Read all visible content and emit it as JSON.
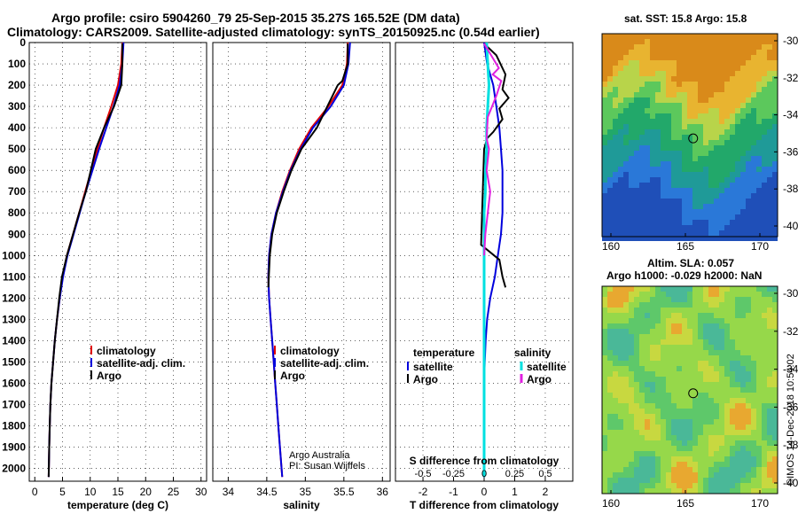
{
  "header": {
    "title_line1": "Argo profile: csiro 5904260_79 25-Sep-2015 35.27S 165.52E (DM data)",
    "title_line2": "Climatology: CARS2009. Satellite-adjusted climatology: synTS_20150925.nc (0.54d earlier)"
  },
  "maps": {
    "sst_title": "sat. SST: 15.8 Argo: 15.8",
    "sla_title1": "Altim. SLA: 0.057",
    "sla_title2": "Argo h1000: -0.029 h2000: NaN",
    "lat_ticks": [
      "-30",
      "-32",
      "-34",
      "-36",
      "-38",
      "-40"
    ],
    "lon_ticks": [
      "160",
      "165",
      "170"
    ],
    "float_position": {
      "lon": 165.52,
      "lat": -35.27
    }
  },
  "credits": {
    "line1": "Argo Australia",
    "line2": "PI: Susan Wijffels",
    "imos": "©IMOS 14-Dec-2018 10:54:02"
  },
  "colors": {
    "climatology": "#e00000",
    "satellite": "#0000dd",
    "argo": "#000000",
    "salinity_satellite": "#00e0e0",
    "salinity_argo": "#e020e0"
  },
  "chart_data": [
    {
      "type": "line",
      "xlabel": "temperature (deg C)",
      "ylabel": "",
      "xlim": [
        -1,
        31
      ],
      "ylim": [
        2060,
        0
      ],
      "xticks": [
        "0",
        "5",
        "10",
        "15",
        "20",
        "25",
        "30"
      ],
      "yticks": [
        "0",
        "100",
        "200",
        "300",
        "400",
        "500",
        "600",
        "700",
        "800",
        "900",
        "1000",
        "1100",
        "1200",
        "1300",
        "1400",
        "1500",
        "1600",
        "1700",
        "1800",
        "1900",
        "2000"
      ],
      "legend": [
        "climatology",
        "satellite-adj. clim.",
        "Argo"
      ],
      "series": [
        {
          "name": "climatology",
          "x": [
            15.8,
            15.6,
            15.0,
            13.8,
            12.5,
            11.3,
            10.2,
            9.1,
            8.0,
            6.9,
            5.8,
            5.0,
            4.5,
            4.0,
            3.6,
            3.3,
            3.0,
            2.8,
            2.7,
            2.6,
            2.5
          ],
          "y": [
            0,
            100,
            200,
            300,
            400,
            500,
            600,
            700,
            800,
            900,
            1000,
            1100,
            1200,
            1300,
            1400,
            1500,
            1600,
            1700,
            1800,
            1900,
            2040
          ]
        },
        {
          "name": "satellite-adj. clim.",
          "x": [
            16.0,
            15.8,
            15.3,
            14.2,
            12.9,
            11.6,
            10.4,
            9.2,
            8.1,
            7.0,
            5.9,
            5.1,
            4.5,
            4.0,
            3.6,
            3.3,
            3.0,
            2.8,
            2.7,
            2.6,
            2.5
          ],
          "y": [
            0,
            100,
            200,
            300,
            400,
            500,
            600,
            700,
            800,
            900,
            1000,
            1100,
            1200,
            1300,
            1400,
            1500,
            1600,
            1700,
            1800,
            1900,
            2040
          ]
        },
        {
          "name": "Argo",
          "x": [
            15.8,
            15.8,
            15.6,
            14.3,
            12.5,
            11.0,
            10.1,
            9.2,
            8.0,
            6.9,
            5.8,
            4.9,
            4.4,
            4.0,
            3.6,
            3.3,
            3.0,
            2.8,
            2.7,
            2.6,
            2.5
          ],
          "y": [
            5,
            100,
            200,
            300,
            400,
            500,
            600,
            700,
            800,
            900,
            1000,
            1100,
            1200,
            1300,
            1400,
            1500,
            1600,
            1700,
            1800,
            1900,
            2040
          ]
        }
      ]
    },
    {
      "type": "line",
      "xlabel": "salinity",
      "ylabel": "",
      "xlim": [
        33.8,
        36.1
      ],
      "ylim": [
        2060,
        0
      ],
      "xticks": [
        "34",
        "34.5",
        "35",
        "35.5",
        "36"
      ],
      "legend": [
        "climatology",
        "satellite-adj. clim.",
        "Argo"
      ],
      "series": [
        {
          "name": "climatology",
          "x": [
            35.55,
            35.54,
            35.48,
            35.3,
            35.08,
            34.92,
            34.8,
            34.7,
            34.62,
            34.56,
            34.53,
            34.52,
            34.53,
            34.55,
            34.57,
            34.59,
            34.61,
            34.63,
            34.65,
            34.67,
            34.7
          ],
          "y": [
            0,
            100,
            200,
            300,
            400,
            500,
            600,
            700,
            800,
            900,
            1000,
            1100,
            1200,
            1300,
            1400,
            1500,
            1600,
            1700,
            1800,
            1900,
            2040
          ]
        },
        {
          "name": "satellite-adj. clim.",
          "x": [
            35.58,
            35.56,
            35.5,
            35.33,
            35.1,
            34.94,
            34.81,
            34.71,
            34.62,
            34.56,
            34.53,
            34.52,
            34.53,
            34.55,
            34.57,
            34.59,
            34.61,
            34.63,
            34.65,
            34.67,
            34.7
          ],
          "y": [
            0,
            100,
            200,
            300,
            400,
            500,
            600,
            700,
            800,
            900,
            1000,
            1100,
            1200,
            1300,
            1400,
            1500,
            1600,
            1700,
            1800,
            1900,
            2040
          ]
        },
        {
          "name": "Argo",
          "x": [
            35.55,
            35.55,
            35.48,
            35.42,
            35.15,
            34.95,
            34.82,
            34.72,
            34.63,
            34.57,
            34.54,
            34.52
          ],
          "y": [
            5,
            100,
            180,
            200,
            400,
            500,
            600,
            700,
            800,
            900,
            1000,
            1150
          ]
        }
      ]
    },
    {
      "type": "line",
      "xlabel": "T difference from climatology",
      "xlabel_top": "S difference from climatology",
      "ylabel": "",
      "xlim": [
        -2.9,
        2.9
      ],
      "ylim": [
        2060,
        0
      ],
      "xticks": [
        "-2",
        "-1",
        "0",
        "1",
        "2"
      ],
      "xticks_top": [
        "-0.5",
        "-0.25",
        "0",
        "0.25",
        "0.5"
      ],
      "legend": {
        "temperature": [
          "satellite",
          "Argo"
        ],
        "salinity": [
          "satellite",
          "Argo"
        ]
      },
      "legend_headers": [
        "temperature",
        "salinity"
      ],
      "series": [
        {
          "name": "temperature satellite",
          "x": [
            0,
            0.1,
            0.3,
            0.4,
            0.5,
            0.55,
            0.6,
            0.6,
            0.6,
            0.55,
            0.45,
            0.35,
            0.2,
            0.1,
            0.05,
            0.02,
            0,
            0,
            0,
            0,
            0
          ],
          "y": [
            0,
            100,
            200,
            300,
            400,
            500,
            600,
            700,
            800,
            900,
            1000,
            1100,
            1200,
            1300,
            1400,
            1500,
            1600,
            1700,
            1800,
            1900,
            2040
          ]
        },
        {
          "name": "temperature Argo",
          "x": [
            0,
            0.4,
            0.7,
            0.6,
            0.8,
            0.5,
            0.6,
            0.3,
            0.1,
            0.0,
            -0.1,
            0.5,
            0.6,
            0.7
          ],
          "y": [
            5,
            60,
            150,
            220,
            260,
            310,
            360,
            420,
            450,
            500,
            950,
            1020,
            1100,
            1150
          ]
        },
        {
          "name": "salinity satellite",
          "x": [
            0.02,
            0.03,
            0.04,
            0.03,
            0.02,
            0.02,
            0.01,
            0.01,
            0,
            0,
            0,
            0,
            0,
            0,
            0,
            0,
            0,
            0,
            0,
            0,
            0
          ],
          "y": [
            0,
            100,
            200,
            300,
            400,
            500,
            600,
            700,
            800,
            900,
            1000,
            1100,
            1200,
            1300,
            1400,
            1500,
            1600,
            1700,
            1800,
            1900,
            2040
          ]
        },
        {
          "name": "salinity Argo",
          "x": [
            0,
            0.12,
            0.07,
            0.14,
            0.1,
            0.03,
            0.02,
            0.04,
            0.02,
            0.05,
            0.03,
            0.01,
            0
          ],
          "y": [
            5,
            120,
            150,
            180,
            250,
            350,
            450,
            500,
            600,
            700,
            800,
            900,
            1000
          ]
        }
      ]
    }
  ]
}
